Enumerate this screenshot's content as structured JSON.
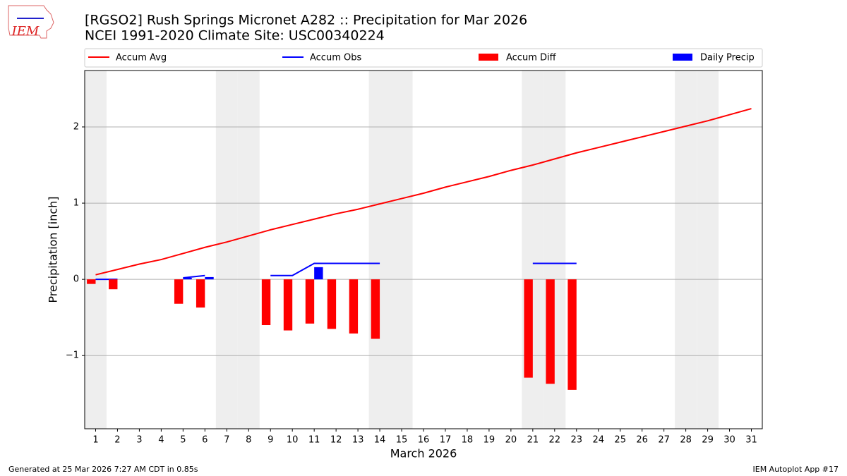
{
  "logo": "IEM",
  "chart_data": {
    "type": "combo",
    "title": "[RGSO2] Rush Springs Micronet A282 :: Precipitation for Mar 2026",
    "subtitle": "NCEI 1991-2020 Climate Site: USC00340224",
    "x_label": "March 2026",
    "y_label": "Precipitation [inch]",
    "x": [
      1,
      2,
      3,
      4,
      5,
      6,
      7,
      8,
      9,
      10,
      11,
      12,
      13,
      14,
      15,
      16,
      17,
      18,
      19,
      20,
      21,
      22,
      23,
      24,
      25,
      26,
      27,
      28,
      29,
      30,
      31
    ],
    "xlim": [
      0.5,
      31.5
    ],
    "xticks": [
      1,
      2,
      3,
      4,
      5,
      6,
      7,
      8,
      9,
      10,
      11,
      12,
      13,
      14,
      15,
      16,
      17,
      18,
      19,
      20,
      21,
      22,
      23,
      24,
      25,
      26,
      27,
      28,
      29,
      30,
      31
    ],
    "ylim": [
      -1.96,
      2.74
    ],
    "yticks": [
      {
        "value": -1,
        "label": "−1"
      },
      0,
      1,
      2
    ],
    "grid": true,
    "shaded_days": [
      1,
      7,
      8,
      14,
      15,
      21,
      22,
      28,
      29
    ],
    "series": [
      {
        "name": "Accum Avg",
        "color": "#ff0000",
        "type": "line",
        "values": [
          0.06,
          0.13,
          0.2,
          0.26,
          0.34,
          0.42,
          0.49,
          0.57,
          0.65,
          0.72,
          0.79,
          0.86,
          0.92,
          0.99,
          1.06,
          1.13,
          1.21,
          1.28,
          1.35,
          1.43,
          1.5,
          1.58,
          1.66,
          1.73,
          1.8,
          1.87,
          1.94,
          2.01,
          2.08,
          2.16,
          2.24
        ]
      },
      {
        "name": "Accum Obs",
        "color": "#0000ff",
        "type": "line",
        "values": [
          0,
          0,
          null,
          null,
          0.02,
          0.05,
          null,
          null,
          0.05,
          0.05,
          0.21,
          0.21,
          0.21,
          0.21,
          null,
          null,
          null,
          null,
          null,
          null,
          0.21,
          0.21,
          0.21,
          null,
          null,
          null,
          null,
          null,
          null,
          null,
          null
        ]
      },
      {
        "name": "Accum Diff",
        "color": "#ff0000",
        "type": "bar",
        "values": [
          -0.06,
          -0.13,
          null,
          null,
          -0.32,
          -0.37,
          null,
          null,
          -0.6,
          -0.67,
          -0.58,
          -0.65,
          -0.71,
          -0.78,
          null,
          null,
          null,
          null,
          null,
          null,
          -1.29,
          -1.37,
          -1.45,
          null,
          null,
          null,
          null,
          null,
          null,
          null,
          null
        ]
      },
      {
        "name": "Daily Precip",
        "color": "#0000ff",
        "type": "bar",
        "values": [
          null,
          null,
          null,
          null,
          0.02,
          0.03,
          null,
          null,
          null,
          null,
          0.16,
          null,
          null,
          null,
          null,
          null,
          null,
          null,
          null,
          null,
          null,
          null,
          null,
          null,
          null,
          null,
          null,
          null,
          null,
          null,
          null
        ]
      }
    ],
    "footer_left": "Generated at 25 Mar 2026 7:27 AM CDT in 0.85s",
    "footer_right": "IEM Autoplot App #17"
  }
}
